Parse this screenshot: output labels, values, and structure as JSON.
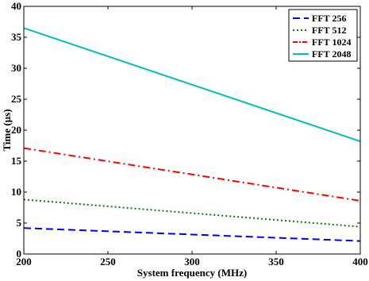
{
  "chart_data": {
    "type": "line",
    "xlabel": "System frequency (MHz)",
    "ylabel": "Time (µs)",
    "xlim": [
      200,
      400
    ],
    "ylim": [
      0,
      40
    ],
    "xticks": [
      200,
      250,
      300,
      350,
      400
    ],
    "yticks": [
      0,
      5,
      10,
      15,
      20,
      25,
      30,
      35,
      40
    ],
    "grid": false,
    "legend_position": "top-right",
    "series": [
      {
        "name": "FFT 256",
        "color": "#0000ff",
        "style": "dashed",
        "x": [
          200,
          400
        ],
        "y": [
          4.2,
          2.1
        ]
      },
      {
        "name": "FFT 512",
        "color": "#008000",
        "style": "dotted",
        "x": [
          200,
          400
        ],
        "y": [
          8.8,
          4.4
        ]
      },
      {
        "name": "FFT 1024",
        "color": "#ff0000",
        "style": "dashdot",
        "x": [
          200,
          400
        ],
        "y": [
          17.1,
          8.6
        ]
      },
      {
        "name": "FFT 2048",
        "color": "#00bfbf",
        "style": "solid",
        "x": [
          200,
          400
        ],
        "y": [
          36.5,
          18.2
        ]
      }
    ]
  }
}
